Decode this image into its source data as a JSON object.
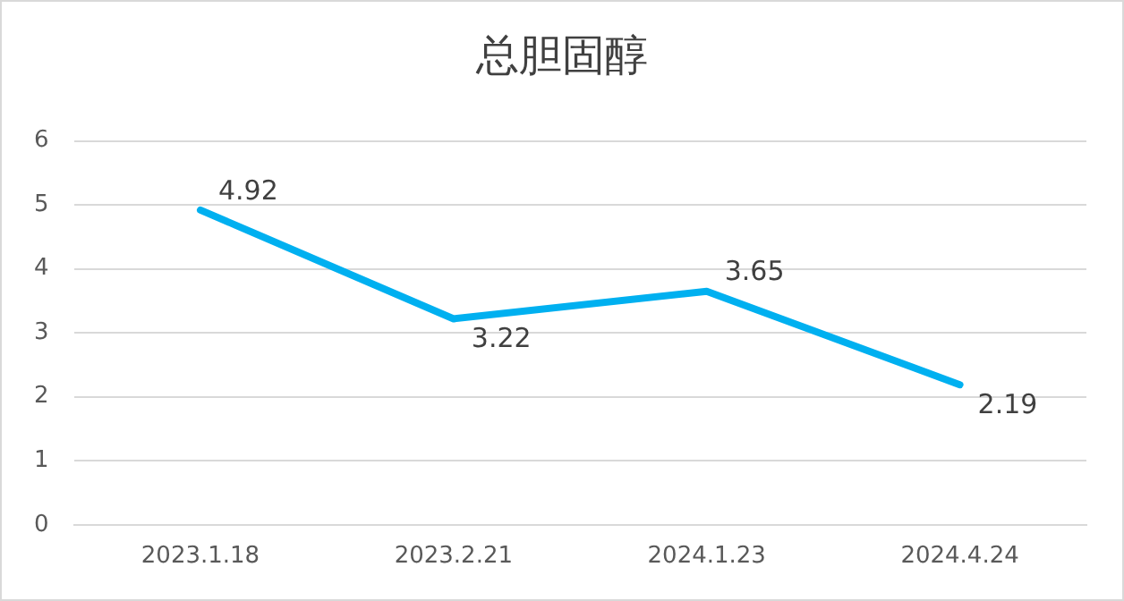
{
  "chart_data": {
    "type": "line",
    "title": "总胆固醇",
    "categories": [
      "2023.1.18",
      "2023.2.21",
      "2024.1.23",
      "2024.4.24"
    ],
    "series": [
      {
        "color": "#00b0f0",
        "values": [
          4.92,
          3.22,
          3.65,
          2.19
        ]
      }
    ],
    "ylim": [
      0,
      6
    ],
    "yticks": [
      0,
      1,
      2,
      3,
      4,
      5,
      6
    ],
    "grid": "y",
    "legend": false,
    "marker": "none",
    "data_labels": true
  }
}
